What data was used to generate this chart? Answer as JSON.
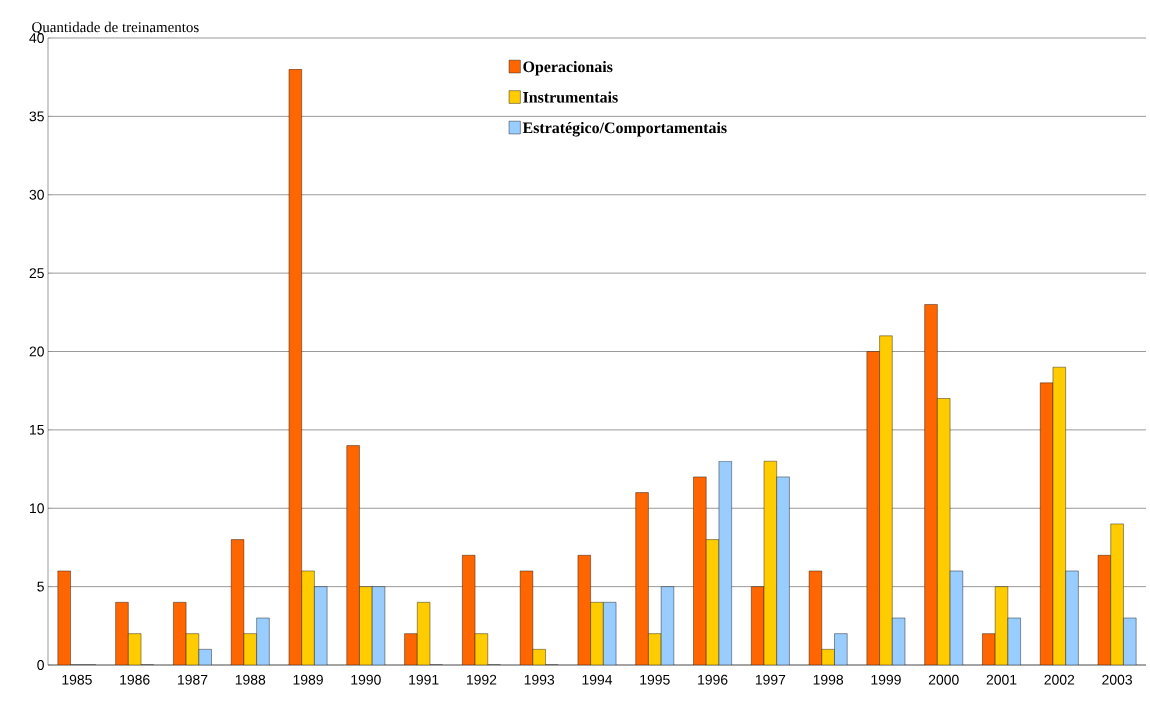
{
  "chart_data": {
    "type": "bar",
    "ylabel": "Quantidade de treinamentos",
    "categories": [
      "1985",
      "1986",
      "1987",
      "1988",
      "1989",
      "1990",
      "1991",
      "1992",
      "1993",
      "1994",
      "1995",
      "1996",
      "1997",
      "1998",
      "1999",
      "2000",
      "2001",
      "2002",
      "2003"
    ],
    "series": [
      {
        "name": "Operacionais",
        "color": "#ff6600",
        "values": [
          6,
          4,
          4,
          8,
          38,
          14,
          2,
          7,
          6,
          7,
          11,
          12,
          5,
          6,
          20,
          23,
          2,
          18,
          7
        ]
      },
      {
        "name": "Instrumentais",
        "color": "#ffcc00",
        "values": [
          0,
          2,
          2,
          2,
          6,
          5,
          4,
          2,
          1,
          4,
          2,
          8,
          13,
          1,
          21,
          17,
          5,
          19,
          9
        ]
      },
      {
        "name": "Estratégico/Comportamentais",
        "color": "#99ccff",
        "values": [
          0,
          0,
          1,
          3,
          5,
          5,
          0,
          0,
          0,
          4,
          5,
          13,
          12,
          2,
          3,
          6,
          3,
          6,
          3
        ]
      }
    ],
    "ylim": [
      0,
      40
    ],
    "yticks": [
      0,
      5,
      10,
      15,
      20,
      25,
      30,
      35,
      40
    ],
    "grid": "y",
    "legend": "top"
  }
}
